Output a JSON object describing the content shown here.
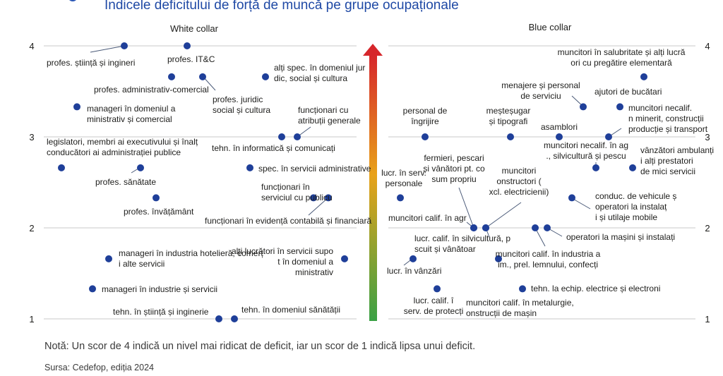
{
  "title": "Indicele deficitului de forță de muncă pe grupe ocupaționale",
  "note": "Notă: Un scor de 4 indică un nivel mai ridicat de deficit, iar un scor de 1 indică lipsa unui deficit.",
  "source": "Sursa: Cedefop, ediția 2024",
  "colors": {
    "dot": "#1f3f99",
    "leader": "#4a5a78",
    "grid": "#c8c8c8",
    "arrow_top": "#d6262b",
    "arrow_mid": "#e8a21a",
    "arrow_bottom": "#3aa145"
  },
  "chart_data": {
    "type": "scatter",
    "ylim": [
      1,
      4
    ],
    "yticks": [
      "1",
      "2",
      "3",
      "4"
    ],
    "grid": true,
    "panels": [
      {
        "name": "White collar",
        "points": [
          {
            "label": "profes. știință și inginerie",
            "y": 4.0
          },
          {
            "label": "profes. IT&C",
            "y": 4.0
          },
          {
            "label": "profes. administrativ-comercial",
            "y": 3.66
          },
          {
            "label": "profes. juridic, social și cultural",
            "y": 3.66
          },
          {
            "label": "alți spec. în domeniul juridic, social și cultural",
            "y": 3.66
          },
          {
            "label": "manageri în domeniul administrativ și comercial",
            "y": 3.33
          },
          {
            "label": "funcționari cu atribuții generale",
            "y": 3.0
          },
          {
            "label": "tehn. în informatică și comunicații",
            "y": 3.0
          },
          {
            "label": "legislatori, membri ai executivului și înalți conducători ai administrației publice",
            "y": 2.66
          },
          {
            "label": "profes. sănătate",
            "y": 2.66
          },
          {
            "label": "spec. în servicii administrative",
            "y": 2.66
          },
          {
            "label": "profes. învățământ",
            "y": 2.33
          },
          {
            "label": "funcționari în serviciul cu publicul",
            "y": 2.33
          },
          {
            "label": "funcționari în evidență contabilă și financiară",
            "y": 2.33
          },
          {
            "label": "manageri în industria hotelieră, comerț și alte servicii",
            "y": 1.66
          },
          {
            "label": "alți lucrători în servicii suport în domeniul administrativ",
            "y": 1.66
          },
          {
            "label": "manageri în industrie și servicii",
            "y": 1.33
          },
          {
            "label": "tehn. în știință și inginerie",
            "y": 1.0
          },
          {
            "label": "tehn. în domeniul sănătății",
            "y": 1.0
          }
        ]
      },
      {
        "name": "Blue collar",
        "points": [
          {
            "label": "muncitori în salubritate și alți lucrători cu pregătire elementară",
            "y": 3.66
          },
          {
            "label": "menajere și personal de serviciu",
            "y": 3.33
          },
          {
            "label": "ajutori de bucătari",
            "y": 3.33
          },
          {
            "label": "personal de îngrijire",
            "y": 3.0
          },
          {
            "label": "meșteșugari și tipografi",
            "y": 3.0
          },
          {
            "label": "asamblori",
            "y": 3.0
          },
          {
            "label": "muncitori necalif. în minerit, construcții, producție și transport",
            "y": 3.0
          },
          {
            "label": "muncitori necalif. în agr., silvicultură și pescuit",
            "y": 2.66
          },
          {
            "label": "vânzători ambulanți și alți prestatori de mici servicii",
            "y": 2.66
          },
          {
            "label": "lucr. în serv. personale",
            "y": 2.33
          },
          {
            "label": "conduc. de vehicule și operatori la instalații și utilaje mobile",
            "y": 2.33
          },
          {
            "label": "muncitori calif. în agr.",
            "y": 2.0
          },
          {
            "label": "fermieri, pescari și vânători pt. consum propriu",
            "y": 2.0
          },
          {
            "label": "lucr. calif. în silvicultură, pescuit și vânătoare",
            "y": 2.0
          },
          {
            "label": "muncitori constructori (excl. electricienii)",
            "y": 2.0
          },
          {
            "label": "muncitori calif. în industria alim., prel. lemnului, confecții",
            "y": 2.0
          },
          {
            "label": "operatori la mașini și instalații",
            "y": 2.0
          },
          {
            "label": "lucr. în vânzări",
            "y": 1.66
          },
          {
            "label": "muncitori calif. în metalurgie, construcții de mașini",
            "y": 1.66
          },
          {
            "label": "lucr. calif. în serv. de protecție",
            "y": 1.33
          },
          {
            "label": "tehn. la echip. electrice și electronice",
            "y": 1.33
          }
        ]
      }
    ]
  }
}
